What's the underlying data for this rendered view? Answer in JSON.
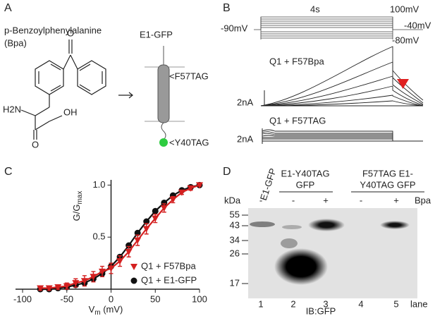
{
  "panel_a": {
    "label": "A",
    "title": "p-Benzoylphenylalanine",
    "abbrev": "(Bpa)",
    "ketone_o": "O",
    "acid_oh": "OH",
    "acid_o": "O",
    "amine": "H2N",
    "construct": "E1-GFP",
    "site1": "<F57TAG",
    "site2": "<Y40TAG"
  },
  "panel_b": {
    "label": "B",
    "duration": "4s",
    "v_top": "100mV",
    "v_tail": "-40mV",
    "v_low": "-80mV",
    "v_hold": "-90mV",
    "trace1": "Q1 + F57Bpa",
    "scale1": "2nA",
    "trace2": "Q1 + F57TAG",
    "scale2": "2nA"
  },
  "panel_d": {
    "label": "D",
    "lane1_head": "E1-GFP",
    "group1": [
      "E1-Y40TAG",
      "GFP"
    ],
    "group2": [
      "F57TAG E1-",
      "Y40TAG GFP"
    ],
    "unit": "kDa",
    "markers": [
      55,
      43,
      34,
      26,
      17
    ],
    "bpa_signs": [
      "-",
      "-",
      "+",
      "-",
      "+"
    ],
    "bpa": "Bpa",
    "lanes": [
      1,
      2,
      3,
      4,
      5
    ],
    "lane_word": "lane",
    "antibody": "IB:GFP"
  },
  "chart_data": {
    "type": "line",
    "panel_label": "C",
    "ylabel": "G/G",
    "ylabel_sub": "max",
    "xlabel": "V",
    "xlabel_sub": "m",
    "xlabel_unit": " (mV)",
    "x": [
      -80,
      -70,
      -60,
      -50,
      -40,
      -30,
      -20,
      -10,
      0,
      10,
      20,
      30,
      40,
      50,
      60,
      70,
      80,
      90,
      100
    ],
    "xlim": [
      -108,
      100
    ],
    "ylim": [
      0,
      1.05
    ],
    "xticks": [
      -100,
      -50,
      0,
      50,
      100
    ],
    "yticks": [
      0.5,
      {
        "value": 1,
        "label": "1.0"
      }
    ],
    "series": [
      {
        "name": "Q1 + F57Bpa",
        "color": "#d42020",
        "marker": "triangle",
        "values": [
          0.01,
          0.01,
          0.02,
          0.03,
          0.06,
          0.08,
          0.12,
          0.17,
          0.2,
          0.27,
          0.36,
          0.47,
          0.58,
          0.68,
          0.78,
          0.86,
          0.93,
          0.97,
          1.0
        ],
        "errors": [
          0.02,
          0.02,
          0.02,
          0.03,
          0.04,
          0.05,
          0.05,
          0.05,
          0.05,
          0.05,
          0.05,
          0.05,
          0.05,
          0.04,
          0.04,
          0.03,
          0.02,
          0.02,
          0.01
        ]
      },
      {
        "name": "Q1 + E1-GFP",
        "color": "#111111",
        "marker": "circle",
        "values": [
          0.0,
          0.0,
          0.01,
          0.02,
          0.04,
          0.06,
          0.1,
          0.15,
          0.22,
          0.31,
          0.42,
          0.54,
          0.65,
          0.75,
          0.83,
          0.9,
          0.95,
          0.98,
          1.0
        ]
      }
    ]
  }
}
